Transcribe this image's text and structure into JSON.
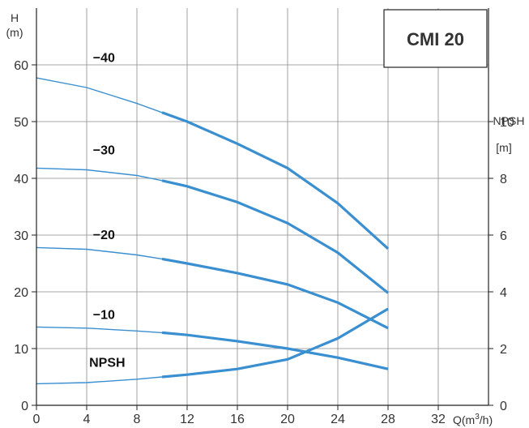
{
  "chart_data": {
    "type": "line",
    "title": "CMI 20",
    "colors": {
      "curve": "#3a8fd0",
      "grid": "#8a8a8a",
      "axis": "#222222"
    },
    "x_axis": {
      "label": "Q(m³/h)",
      "label_main": "Q(m",
      "label_sup": "3",
      "label_tail": "/h)",
      "range": [
        0,
        36
      ],
      "ticks": [
        0,
        4,
        8,
        12,
        16,
        20,
        24,
        28,
        32
      ]
    },
    "y_axis_left": {
      "label_top": "H",
      "label_unit": "(m)",
      "range": [
        0,
        70
      ],
      "ticks": [
        0,
        10,
        20,
        30,
        40,
        50,
        60
      ]
    },
    "y_axis_right": {
      "label_top": "NPSH",
      "label_unit": "[m]",
      "range": [
        0,
        14
      ],
      "ticks": [
        0,
        2,
        4,
        6,
        8,
        10
      ]
    },
    "grid": true,
    "series": [
      {
        "name": "−40",
        "axis": "left",
        "thick_from": 10,
        "x": [
          0,
          4,
          8,
          10,
          12,
          16,
          20,
          24,
          28
        ],
        "y": [
          57.7,
          56,
          53.2,
          51.6,
          50,
          46.1,
          41.8,
          35.6,
          27.6
        ]
      },
      {
        "name": "−30",
        "axis": "left",
        "thick_from": 10,
        "x": [
          0,
          4,
          8,
          10,
          12,
          16,
          20,
          24,
          28
        ],
        "y": [
          41.8,
          41.5,
          40.5,
          39.6,
          38.6,
          35.8,
          32.1,
          26.9,
          19.8
        ]
      },
      {
        "name": "−20",
        "axis": "left",
        "thick_from": 10,
        "x": [
          0,
          4,
          8,
          10,
          12,
          16,
          20,
          24,
          28
        ],
        "y": [
          27.8,
          27.5,
          26.5,
          25.8,
          25,
          23.3,
          21.3,
          18.1,
          13.6
        ]
      },
      {
        "name": "−10",
        "axis": "left",
        "thick_from": 10,
        "x": [
          0,
          4,
          8,
          10,
          12,
          16,
          20,
          24,
          28
        ],
        "y": [
          13.8,
          13.6,
          13.1,
          12.8,
          12.4,
          11.3,
          10,
          8.4,
          6.4
        ]
      },
      {
        "name": "NPSH",
        "axis": "right",
        "thick_from": 10,
        "x": [
          0,
          4,
          8,
          10,
          12,
          16,
          20,
          24,
          28
        ],
        "y": [
          0.76,
          0.8,
          0.92,
          1.0,
          1.08,
          1.28,
          1.62,
          2.36,
          3.4
        ]
      }
    ]
  }
}
